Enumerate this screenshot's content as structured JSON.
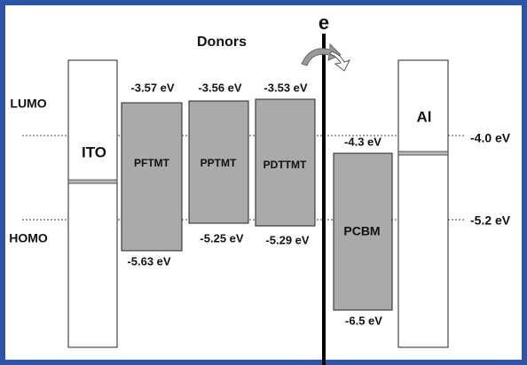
{
  "header": {
    "title": "Donors",
    "electron": "e"
  },
  "levels": {
    "lumo": "LUMO",
    "homo": "HOMO",
    "lumo_ev": "-4.0 eV",
    "homo_ev": "-5.2 eV"
  },
  "electrodes": {
    "anode": "ITO",
    "cathode": "Al"
  },
  "materials": [
    {
      "name": "PFTMT",
      "lumo": "-3.57 eV",
      "homo": "-5.63 eV"
    },
    {
      "name": "PPTMT",
      "lumo": "-3.56 eV",
      "homo": "-5.25 eV"
    },
    {
      "name": "PDTTMT",
      "lumo": "-3.53 eV",
      "homo": "-5.29 eV"
    },
    {
      "name": "PCBM",
      "lumo": "-4.3 eV",
      "homo": "-6.5 eV"
    }
  ]
}
